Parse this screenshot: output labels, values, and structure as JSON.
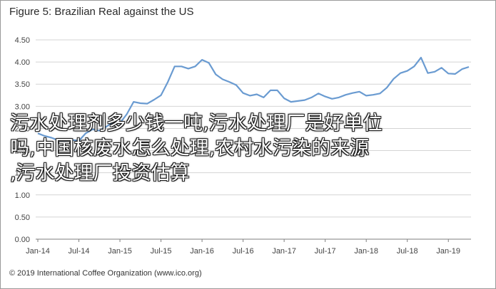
{
  "figure_title": "Figure 5: Brazilian Real against the US",
  "footer": "© 2019 International Coffee Organization (www.ico.org)",
  "overlay_lines": [
    "污水处理剂多少钱一吨,污水处理厂是好单位",
    "吗,中国核废水怎么处理,农村水污染的来源",
    ",污水处理厂投资估算"
  ],
  "colors": {
    "line": "#6a9bd1",
    "grid": "#d4d4d4",
    "axis": "#7f7f7f",
    "text": "#444444"
  },
  "chart_data": {
    "type": "line",
    "title": "Figure 5: Brazilian Real against the US",
    "xlabel": "",
    "ylabel": "",
    "ylim": [
      0,
      4.5
    ],
    "yticks": [
      "0.00",
      "0.50",
      "1.00",
      "1.50",
      "2.00",
      "2.50",
      "3.00",
      "3.50",
      "4.00",
      "4.50"
    ],
    "xticks": [
      "Jan-14",
      "Jul-14",
      "Jan-15",
      "Jul-15",
      "Jan-16",
      "Jul-16",
      "Jan-17",
      "Jul-17",
      "Jan-18",
      "Jul-18",
      "Jan-19"
    ],
    "grid": true,
    "legend": "none",
    "series": [
      {
        "values": [
          2.39,
          2.33,
          2.29,
          2.23,
          2.23,
          2.24,
          2.22,
          2.39,
          2.48,
          2.45,
          2.54,
          2.64,
          2.62,
          2.82,
          3.1,
          3.07,
          3.06,
          3.15,
          3.25,
          3.55,
          3.9,
          3.9,
          3.85,
          3.9,
          4.05,
          3.98,
          3.72,
          3.61,
          3.55,
          3.48,
          3.3,
          3.24,
          3.27,
          3.2,
          3.36,
          3.36,
          3.18,
          3.1,
          3.12,
          3.14,
          3.2,
          3.29,
          3.22,
          3.17,
          3.2,
          3.26,
          3.3,
          3.33,
          3.24,
          3.26,
          3.29,
          3.42,
          3.62,
          3.75,
          3.8,
          3.9,
          4.1,
          3.75,
          3.78,
          3.87,
          3.74,
          3.73,
          3.84,
          3.89
        ]
      }
    ]
  }
}
